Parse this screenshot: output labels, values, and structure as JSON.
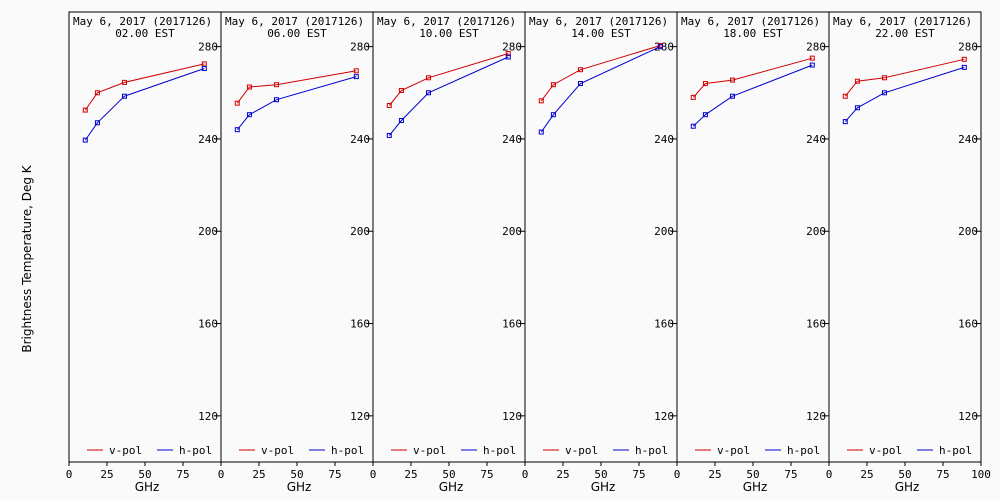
{
  "figure": {
    "ylabel": "Brightness Temperature, Deg K",
    "background": "#fafafa",
    "v_color": "#d00000",
    "h_color": "#0000d0"
  },
  "chart_data": [
    {
      "type": "line",
      "title": "May  6, 2017 (2017126)",
      "subtitle": "02.00 EST",
      "xlabel": "GHz",
      "xlim": [
        0,
        100
      ],
      "ylim": [
        100,
        295
      ],
      "xticks": [
        0,
        25,
        50,
        75
      ],
      "yticks": [
        120,
        160,
        200,
        240,
        280
      ],
      "x": [
        10.7,
        18.7,
        36.5,
        89.0
      ],
      "series": [
        {
          "name": "v-pol",
          "color": "#d00000",
          "values": [
            252.5,
            260.0,
            264.5,
            272.5
          ]
        },
        {
          "name": "h-pol",
          "color": "#0000d0",
          "values": [
            239.5,
            247.0,
            258.5,
            270.5
          ]
        }
      ]
    },
    {
      "type": "line",
      "title": "May  6, 2017 (2017126)",
      "subtitle": "06.00 EST",
      "xlabel": "GHz",
      "xlim": [
        0,
        100
      ],
      "ylim": [
        100,
        295
      ],
      "xticks": [
        0,
        25,
        50,
        75
      ],
      "yticks": [
        120,
        160,
        200,
        240,
        280
      ],
      "x": [
        10.7,
        18.7,
        36.5,
        89.0
      ],
      "series": [
        {
          "name": "v-pol",
          "color": "#d00000",
          "values": [
            255.5,
            262.5,
            263.5,
            269.5
          ]
        },
        {
          "name": "h-pol",
          "color": "#0000d0",
          "values": [
            244.0,
            250.5,
            257.0,
            267.0
          ]
        }
      ]
    },
    {
      "type": "line",
      "title": "May  6, 2017 (2017126)",
      "subtitle": "10.00 EST",
      "xlabel": "GHz",
      "xlim": [
        0,
        100
      ],
      "ylim": [
        100,
        295
      ],
      "xticks": [
        0,
        25,
        50,
        75
      ],
      "yticks": [
        120,
        160,
        200,
        240,
        280
      ],
      "x": [
        10.7,
        18.7,
        36.5,
        89.0
      ],
      "series": [
        {
          "name": "v-pol",
          "color": "#d00000",
          "values": [
            254.5,
            261.0,
            266.5,
            277.0
          ]
        },
        {
          "name": "h-pol",
          "color": "#0000d0",
          "values": [
            241.5,
            248.0,
            260.0,
            275.5
          ]
        }
      ]
    },
    {
      "type": "line",
      "title": "May  6, 2017 (2017126)",
      "subtitle": "14.00 EST",
      "xlabel": "GHz",
      "xlim": [
        0,
        100
      ],
      "ylim": [
        100,
        295
      ],
      "xticks": [
        0,
        25,
        50,
        75
      ],
      "yticks": [
        120,
        160,
        200,
        240,
        280
      ],
      "x": [
        10.7,
        18.7,
        36.5,
        89.0
      ],
      "series": [
        {
          "name": "v-pol",
          "color": "#d00000",
          "values": [
            256.5,
            263.5,
            270.0,
            280.5
          ]
        },
        {
          "name": "h-pol",
          "color": "#0000d0",
          "values": [
            243.0,
            250.5,
            264.0,
            280.0
          ]
        }
      ]
    },
    {
      "type": "line",
      "title": "May  6, 2017 (2017126)",
      "subtitle": "18.00 EST",
      "xlabel": "GHz",
      "xlim": [
        0,
        100
      ],
      "ylim": [
        100,
        295
      ],
      "xticks": [
        0,
        25,
        50,
        75
      ],
      "yticks": [
        120,
        160,
        200,
        240,
        280
      ],
      "x": [
        10.7,
        18.7,
        36.5,
        89.0
      ],
      "series": [
        {
          "name": "v-pol",
          "color": "#d00000",
          "values": [
            258.0,
            264.0,
            265.5,
            275.0
          ]
        },
        {
          "name": "h-pol",
          "color": "#0000d0",
          "values": [
            245.5,
            250.5,
            258.5,
            272.0
          ]
        }
      ]
    },
    {
      "type": "line",
      "title": "May  6, 2017 (2017126)",
      "subtitle": "22.00 EST",
      "xlabel": "GHz",
      "xlim": [
        0,
        100
      ],
      "ylim": [
        100,
        295
      ],
      "xticks": [
        0,
        25,
        50,
        75,
        100
      ],
      "yticks": [
        120,
        160,
        200,
        240,
        280
      ],
      "x": [
        10.7,
        18.7,
        36.5,
        89.0
      ],
      "series": [
        {
          "name": "v-pol",
          "color": "#d00000",
          "values": [
            258.5,
            265.0,
            266.5,
            274.5
          ]
        },
        {
          "name": "h-pol",
          "color": "#0000d0",
          "values": [
            247.5,
            253.5,
            260.0,
            271.0
          ]
        }
      ]
    }
  ]
}
